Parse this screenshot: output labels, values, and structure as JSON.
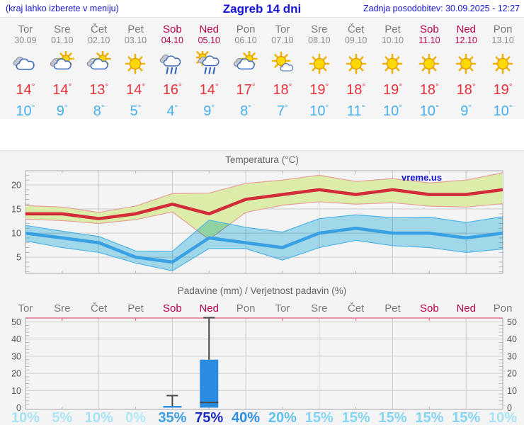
{
  "header": {
    "hint": "(kraj lahko izberete v meniju)",
    "title": "Zagreb 14 dni",
    "updated": "Zadnja posodobitev: 30.09.2025 - 12:27"
  },
  "units": {
    "degree": "°"
  },
  "watermark": "vreme.us",
  "colors": {
    "header_blue": "#1414d6",
    "weekday_gray": "#7a7a7a",
    "weekend_red": "#b8004f",
    "tmax_red": "#e8323c",
    "tmin_blue": "#45b0ee",
    "max_line": "#d22c38",
    "max_band": "#dcedaa",
    "max_band_edge": "#e8a098",
    "min_line": "#3aa0e4",
    "min_band": "#a8e2f4",
    "min_band_edge": "#50b4e8",
    "bar_blue": "#2b8de0",
    "whisker": "#4a4a4a",
    "grid": "#cccccc",
    "axis": "#a8a8a8",
    "precip_top_border": "#e0718d",
    "panel_bg": "#f4f4f4"
  },
  "days": [
    {
      "name": "Tor",
      "date": "30.09",
      "weekend": false,
      "icon": "cloudy",
      "tmax": "14",
      "tmin": "10",
      "prob": "10%",
      "prob_color": "#a7e3f5"
    },
    {
      "name": "Sre",
      "date": "01.10",
      "weekend": false,
      "icon": "partly-cloudy",
      "tmax": "14",
      "tmin": "9",
      "prob": "5%",
      "prob_color": "#ace6f6"
    },
    {
      "name": "Čet",
      "date": "02.10",
      "weekend": false,
      "icon": "partly-cloudy",
      "tmax": "13",
      "tmin": "8",
      "prob": "10%",
      "prob_color": "#a7e3f5"
    },
    {
      "name": "Pet",
      "date": "03.10",
      "weekend": false,
      "icon": "sunny",
      "tmax": "14",
      "tmin": "5",
      "prob": "0%",
      "prob_color": "#b2e8f7"
    },
    {
      "name": "Sob",
      "date": "04.10",
      "weekend": true,
      "icon": "rain",
      "tmax": "16",
      "tmin": "4",
      "prob": "35%",
      "prob_color": "#3f9ee2"
    },
    {
      "name": "Ned",
      "date": "05.10",
      "weekend": true,
      "icon": "sun-rain",
      "tmax": "14",
      "tmin": "9",
      "prob": "75%",
      "prob_color": "#1c2dc4"
    },
    {
      "name": "Pon",
      "date": "06.10",
      "weekend": false,
      "icon": "partly-cloudy",
      "tmax": "17",
      "tmin": "8",
      "prob": "40%",
      "prob_color": "#2f8ede"
    },
    {
      "name": "Tor",
      "date": "07.10",
      "weekend": false,
      "icon": "mostly-sunny",
      "tmax": "18",
      "tmin": "7",
      "prob": "20%",
      "prob_color": "#62c4ec"
    },
    {
      "name": "Sre",
      "date": "08.10",
      "weekend": false,
      "icon": "sunny",
      "tmax": "19",
      "tmin": "10",
      "prob": "15%",
      "prob_color": "#85d6f2"
    },
    {
      "name": "Čet",
      "date": "09.10",
      "weekend": false,
      "icon": "sunny",
      "tmax": "18",
      "tmin": "11",
      "prob": "15%",
      "prob_color": "#85d6f2"
    },
    {
      "name": "Pet",
      "date": "10.10",
      "weekend": false,
      "icon": "sunny",
      "tmax": "19",
      "tmin": "10",
      "prob": "15%",
      "prob_color": "#85d6f2"
    },
    {
      "name": "Sob",
      "date": "11.10",
      "weekend": true,
      "icon": "sunny",
      "tmax": "18",
      "tmin": "10",
      "prob": "15%",
      "prob_color": "#85d6f2"
    },
    {
      "name": "Ned",
      "date": "12.10",
      "weekend": true,
      "icon": "sunny",
      "tmax": "18",
      "tmin": "9",
      "prob": "15%",
      "prob_color": "#85d6f2"
    },
    {
      "name": "Pon",
      "date": "13.10",
      "weekend": false,
      "icon": "sunny",
      "tmax": "19",
      "tmin": "10",
      "prob": "10%",
      "prob_color": "#a7e3f5"
    }
  ],
  "chart_data": [
    {
      "type": "line",
      "title": "Temperatura (°C)",
      "x_labels": [
        "Tor",
        "Sre",
        "Čet",
        "Pet",
        "Sob",
        "Ned",
        "Pon",
        "Tor",
        "Sre",
        "Čet",
        "Pet",
        "Sob",
        "Ned",
        "Pon"
      ],
      "ylim": [
        1.6,
        23
      ],
      "yticks": [
        5,
        10,
        15,
        20
      ],
      "grid": "on",
      "series": [
        {
          "name": "max",
          "values": [
            14,
            14,
            13,
            14,
            16,
            14,
            17,
            18,
            19,
            18,
            19,
            18,
            18,
            19
          ]
        },
        {
          "name": "max_hi",
          "values": [
            15.7,
            15.4,
            14.3,
            15.6,
            18.2,
            18.3,
            20.3,
            21,
            22,
            20.7,
            21.3,
            20.4,
            21,
            22.5
          ]
        },
        {
          "name": "max_lo",
          "values": [
            12.9,
            12.6,
            12,
            12.8,
            14.4,
            8.7,
            14.3,
            15.8,
            16.5,
            16,
            16.3,
            15.6,
            15.4,
            16.1
          ]
        },
        {
          "name": "min",
          "values": [
            10,
            9,
            8,
            5,
            4,
            9,
            8,
            7,
            10,
            11,
            10,
            10,
            9,
            10
          ]
        },
        {
          "name": "min_hi",
          "values": [
            11.6,
            10.4,
            9.3,
            6.3,
            6.2,
            12.7,
            11.2,
            10.2,
            13,
            13.8,
            13.2,
            13.3,
            12.2,
            13.4
          ]
        },
        {
          "name": "min_lo",
          "values": [
            8.4,
            7,
            6,
            3.8,
            2.2,
            6.8,
            6.8,
            4.4,
            7,
            8.5,
            7.4,
            7,
            6,
            6.7
          ]
        }
      ]
    },
    {
      "type": "bar",
      "title": "Padavine (mm) / Verjetnost padavin (%)",
      "categories": [
        "Tor",
        "Sre",
        "Čet",
        "Pet",
        "Sob",
        "Ned",
        "Pon",
        "Tor",
        "Sre",
        "Čet",
        "Pet",
        "Sob",
        "Ned",
        "Pon"
      ],
      "rain_mm": [
        0,
        0,
        0,
        0,
        1,
        28,
        0,
        0,
        0,
        0,
        0,
        0,
        0,
        0
      ],
      "rain_max_mm": [
        0,
        0,
        0,
        0,
        7,
        52.5,
        0,
        0,
        0,
        0,
        0,
        0,
        0,
        0
      ],
      "rain_min_mm": [
        0,
        0,
        0,
        0,
        0,
        3,
        0,
        0,
        0,
        0,
        0,
        0,
        0,
        0
      ],
      "probability_pct": [
        10,
        5,
        10,
        0,
        35,
        75,
        40,
        20,
        15,
        15,
        15,
        15,
        15,
        10
      ],
      "ylim": [
        0,
        50
      ],
      "yticks": [
        0,
        10,
        20,
        30,
        40,
        50
      ],
      "grid": "on"
    }
  ]
}
